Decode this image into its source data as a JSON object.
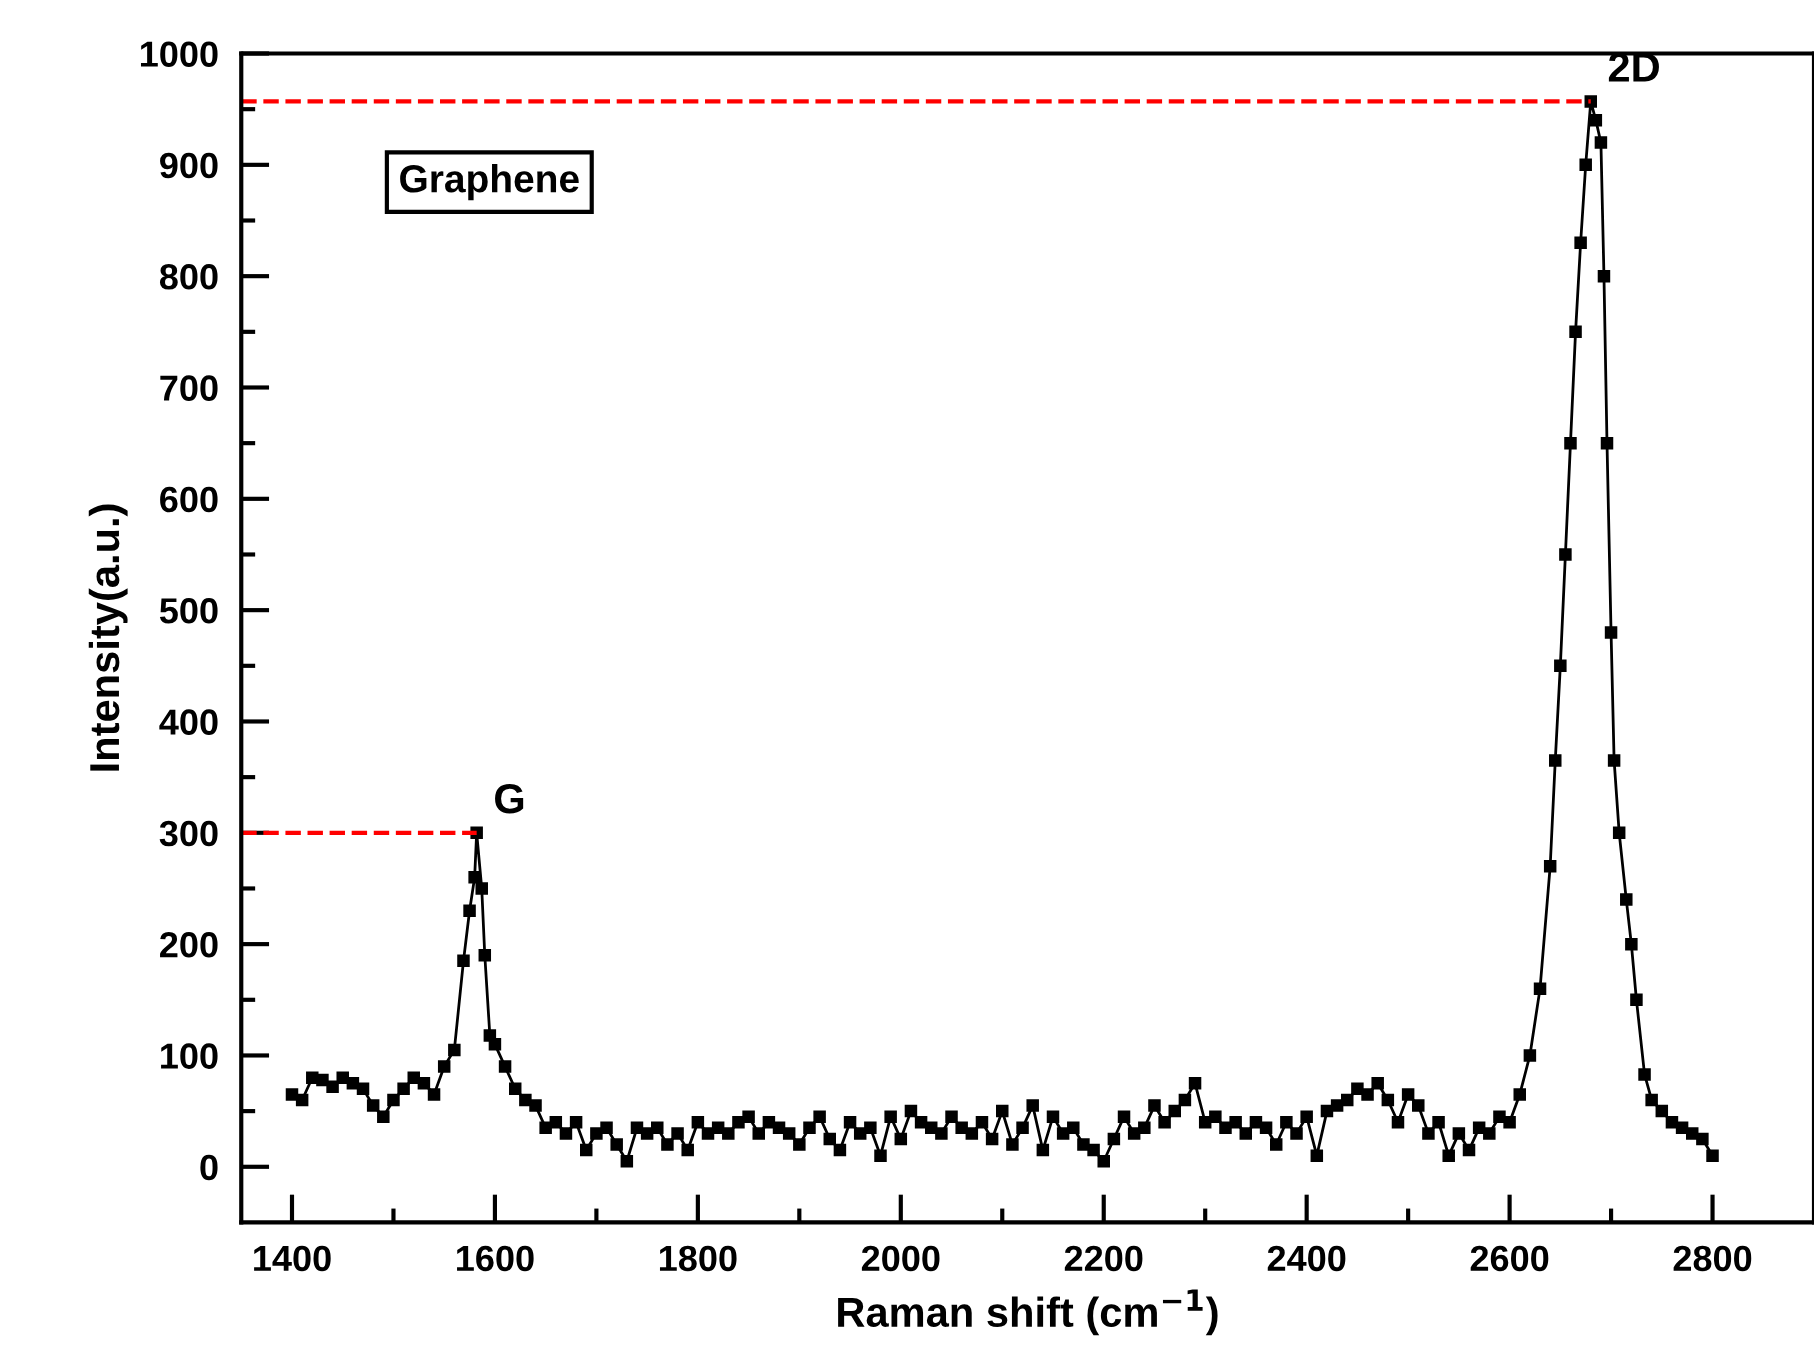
{
  "chart_data": {
    "type": "line",
    "xlabel": "Raman shift (cm$^{−1}$)",
    "ylabel": "Intensity(a.u.)",
    "xlim": [
      1350,
      2900
    ],
    "ylim": [
      -50,
      1000
    ],
    "xticks": [
      1400,
      {
        "value": 1500,
        "label": null
      },
      1600,
      {
        "value": 1700,
        "label": null
      },
      1800,
      {
        "value": 1900,
        "label": null
      },
      2000,
      {
        "value": 2100,
        "label": null
      },
      2200,
      {
        "value": 2300,
        "label": null
      },
      2400,
      {
        "value": 2500,
        "label": null
      },
      2600,
      {
        "value": 2700,
        "label": null
      },
      2800
    ],
    "yticks": [
      0,
      {
        "value": 50,
        "label": null
      },
      100,
      {
        "value": 150,
        "label": null
      },
      200,
      {
        "value": 250,
        "label": null
      },
      300,
      {
        "value": 350,
        "label": null
      },
      400,
      {
        "value": 450,
        "label": null
      },
      500,
      {
        "value": 550,
        "label": null
      },
      600,
      {
        "value": 650,
        "label": null
      },
      700,
      {
        "value": 750,
        "label": null
      },
      800,
      {
        "value": 850,
        "label": null
      },
      900,
      {
        "value": 950,
        "label": null
      },
      1000
    ],
    "grid": false,
    "legend": false,
    "annotations": [
      {
        "text": "G",
        "x": 1582,
        "y": 300
      },
      {
        "text": "2D",
        "x": 2680,
        "y": 957
      },
      "Graphene"
    ],
    "series": [
      {
        "marker": "square",
        "line_style": "solid",
        "color": "#000000",
        "x": [
          1400,
          1410,
          1420,
          1430,
          1440,
          1450,
          1460,
          1470,
          1480,
          1490,
          1500,
          1510,
          1520,
          1530,
          1540,
          1550,
          1560,
          1569,
          1575,
          1580,
          1582,
          1587,
          1590,
          1595,
          1600,
          1610,
          1620,
          1630,
          1640,
          1650,
          1660,
          1670,
          1680,
          1690,
          1700,
          1710,
          1720,
          1730,
          1740,
          1750,
          1760,
          1770,
          1780,
          1790,
          1800,
          1810,
          1820,
          1830,
          1840,
          1850,
          1860,
          1870,
          1880,
          1890,
          1900,
          1910,
          1920,
          1930,
          1940,
          1950,
          1960,
          1970,
          1980,
          1990,
          2000,
          2010,
          2020,
          2030,
          2040,
          2050,
          2060,
          2070,
          2080,
          2090,
          2100,
          2110,
          2120,
          2130,
          2140,
          2150,
          2160,
          2170,
          2180,
          2190,
          2200,
          2210,
          2220,
          2230,
          2240,
          2250,
          2260,
          2270,
          2280,
          2290,
          2300,
          2310,
          2320,
          2330,
          2340,
          2350,
          2360,
          2370,
          2380,
          2390,
          2400,
          2410,
          2420,
          2430,
          2440,
          2450,
          2460,
          2470,
          2480,
          2490,
          2500,
          2510,
          2520,
          2530,
          2540,
          2550,
          2560,
          2570,
          2580,
          2590,
          2600,
          2610,
          2620,
          2630,
          2640,
          2645,
          2650,
          2655,
          2660,
          2665,
          2670,
          2675,
          2680,
          2685,
          2690,
          2693,
          2696,
          2700,
          2703,
          2708,
          2715,
          2720,
          2725,
          2733,
          2740,
          2750,
          2760,
          2770,
          2780,
          2790,
          2800
        ],
        "values": [
          65,
          60,
          80,
          78,
          72,
          80,
          75,
          70,
          55,
          45,
          60,
          70,
          80,
          75,
          65,
          90,
          105,
          185,
          230,
          260,
          300,
          250,
          190,
          118,
          110,
          90,
          70,
          60,
          55,
          35,
          40,
          30,
          40,
          15,
          30,
          35,
          20,
          5,
          35,
          30,
          35,
          20,
          30,
          15,
          40,
          30,
          35,
          30,
          40,
          45,
          30,
          40,
          35,
          30,
          20,
          35,
          45,
          25,
          15,
          40,
          30,
          35,
          10,
          45,
          25,
          50,
          40,
          35,
          30,
          45,
          35,
          30,
          40,
          25,
          50,
          20,
          35,
          55,
          15,
          45,
          30,
          35,
          20,
          15,
          5,
          25,
          45,
          30,
          35,
          55,
          40,
          50,
          60,
          75,
          40,
          45,
          35,
          40,
          30,
          40,
          35,
          20,
          40,
          30,
          45,
          10,
          50,
          55,
          60,
          70,
          65,
          75,
          60,
          40,
          65,
          55,
          30,
          40,
          10,
          30,
          15,
          35,
          30,
          45,
          40,
          65,
          100,
          160,
          270,
          365,
          450,
          550,
          650,
          750,
          830,
          900,
          957,
          940,
          920,
          800,
          650,
          480,
          365,
          300,
          240,
          200,
          150,
          83,
          60,
          50,
          40,
          35,
          30,
          25,
          10
        ]
      },
      {
        "marker": "none",
        "line_style": "dashed",
        "color": "#ff0000",
        "x": [
          1350,
          2680
        ],
        "values": [
          957,
          957
        ]
      },
      {
        "marker": "none",
        "line_style": "dashed",
        "color": "#ff0000",
        "x": [
          1350,
          1582
        ],
        "values": [
          300,
          300
        ]
      }
    ]
  }
}
